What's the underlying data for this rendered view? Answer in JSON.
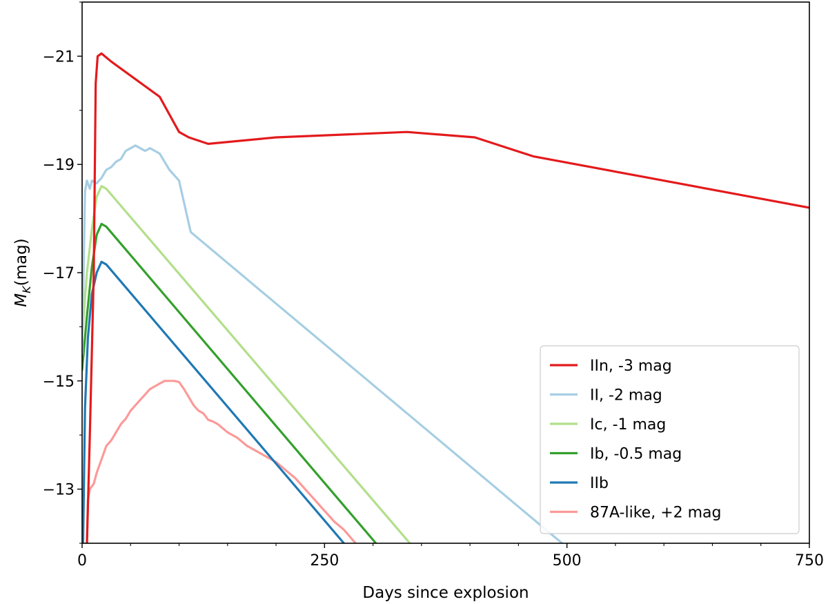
{
  "chart_data": {
    "type": "line",
    "xlabel": "Days since explosion",
    "ylabel_main": "M",
    "ylabel_sub": "K",
    "ylabel_unit": "(mag)",
    "xlim": [
      0,
      750
    ],
    "ylim": [
      -22,
      -12
    ],
    "y_inverted": true,
    "xticks": [
      0,
      250,
      500,
      750
    ],
    "xtick_labels": [
      "0",
      "250",
      "500",
      "750"
    ],
    "yticks": [
      -21,
      -19,
      -17,
      -15,
      -13
    ],
    "ytick_labels": [
      "−21",
      "−19",
      "−17",
      "−15",
      "−13"
    ],
    "grid": false,
    "legend_position": "bottom-right",
    "series": [
      {
        "name": "IIn, -3 mag",
        "color": "#e31a1c",
        "points": [
          [
            5,
            -12
          ],
          [
            8,
            -14
          ],
          [
            12,
            -17
          ],
          [
            14,
            -20.5
          ],
          [
            16,
            -21.0
          ],
          [
            20,
            -21.05
          ],
          [
            30,
            -20.9
          ],
          [
            80,
            -20.25
          ],
          [
            100,
            -19.6
          ],
          [
            110,
            -19.5
          ],
          [
            130,
            -19.38
          ],
          [
            200,
            -19.5
          ],
          [
            335,
            -19.6
          ],
          [
            405,
            -19.5
          ],
          [
            465,
            -19.15
          ],
          [
            750,
            -18.2
          ]
        ]
      },
      {
        "name": "II, -2 mag",
        "color": "#a6cee3",
        "points": [
          [
            0,
            -15.5
          ],
          [
            3,
            -18.5
          ],
          [
            5,
            -18.7
          ],
          [
            8,
            -18.55
          ],
          [
            10,
            -18.7
          ],
          [
            15,
            -18.65
          ],
          [
            20,
            -18.75
          ],
          [
            25,
            -18.9
          ],
          [
            30,
            -18.95
          ],
          [
            35,
            -19.05
          ],
          [
            40,
            -19.1
          ],
          [
            45,
            -19.25
          ],
          [
            50,
            -19.3
          ],
          [
            55,
            -19.35
          ],
          [
            60,
            -19.3
          ],
          [
            65,
            -19.25
          ],
          [
            70,
            -19.3
          ],
          [
            75,
            -19.25
          ],
          [
            80,
            -19.2
          ],
          [
            85,
            -19.05
          ],
          [
            90,
            -18.9
          ],
          [
            100,
            -18.7
          ],
          [
            112,
            -17.75
          ],
          [
            495,
            -12
          ]
        ]
      },
      {
        "name": "Ic, -1 mag",
        "color": "#b2df8a",
        "points": [
          [
            0,
            -15.8
          ],
          [
            5,
            -17.0
          ],
          [
            10,
            -17.8
          ],
          [
            15,
            -18.4
          ],
          [
            20,
            -18.6
          ],
          [
            25,
            -18.55
          ],
          [
            338,
            -12
          ]
        ]
      },
      {
        "name": "Ib, -0.5 mag",
        "color": "#33a02c",
        "points": [
          [
            0,
            -15.2
          ],
          [
            5,
            -16.2
          ],
          [
            10,
            -17.1
          ],
          [
            15,
            -17.7
          ],
          [
            20,
            -17.9
          ],
          [
            25,
            -17.85
          ],
          [
            303,
            -12
          ]
        ]
      },
      {
        "name": "IIb",
        "color": "#1f78b4",
        "points": [
          [
            1,
            -12
          ],
          [
            3,
            -14.5
          ],
          [
            6,
            -15.8
          ],
          [
            10,
            -16.6
          ],
          [
            15,
            -17.0
          ],
          [
            20,
            -17.2
          ],
          [
            25,
            -17.15
          ],
          [
            270,
            -12
          ]
        ]
      },
      {
        "name": "87A-like, +2 mag",
        "color": "#fb9a99",
        "points": [
          [
            5,
            -12
          ],
          [
            6,
            -12.8
          ],
          [
            8,
            -13.0
          ],
          [
            12,
            -13.1
          ],
          [
            15,
            -13.3
          ],
          [
            20,
            -13.55
          ],
          [
            25,
            -13.8
          ],
          [
            30,
            -13.9
          ],
          [
            35,
            -14.05
          ],
          [
            40,
            -14.2
          ],
          [
            45,
            -14.3
          ],
          [
            50,
            -14.45
          ],
          [
            55,
            -14.55
          ],
          [
            60,
            -14.65
          ],
          [
            65,
            -14.75
          ],
          [
            70,
            -14.85
          ],
          [
            75,
            -14.9
          ],
          [
            80,
            -14.95
          ],
          [
            85,
            -15.0
          ],
          [
            90,
            -15.0
          ],
          [
            95,
            -15.0
          ],
          [
            100,
            -14.98
          ],
          [
            105,
            -14.85
          ],
          [
            110,
            -14.7
          ],
          [
            115,
            -14.55
          ],
          [
            120,
            -14.45
          ],
          [
            125,
            -14.4
          ],
          [
            130,
            -14.28
          ],
          [
            135,
            -14.25
          ],
          [
            140,
            -14.2
          ],
          [
            150,
            -14.05
          ],
          [
            160,
            -13.95
          ],
          [
            170,
            -13.8
          ],
          [
            180,
            -13.7
          ],
          [
            190,
            -13.6
          ],
          [
            200,
            -13.5
          ],
          [
            210,
            -13.35
          ],
          [
            220,
            -13.2
          ],
          [
            230,
            -13.0
          ],
          [
            240,
            -12.8
          ],
          [
            250,
            -12.6
          ],
          [
            260,
            -12.4
          ],
          [
            270,
            -12.25
          ],
          [
            282,
            -12
          ]
        ]
      }
    ]
  }
}
